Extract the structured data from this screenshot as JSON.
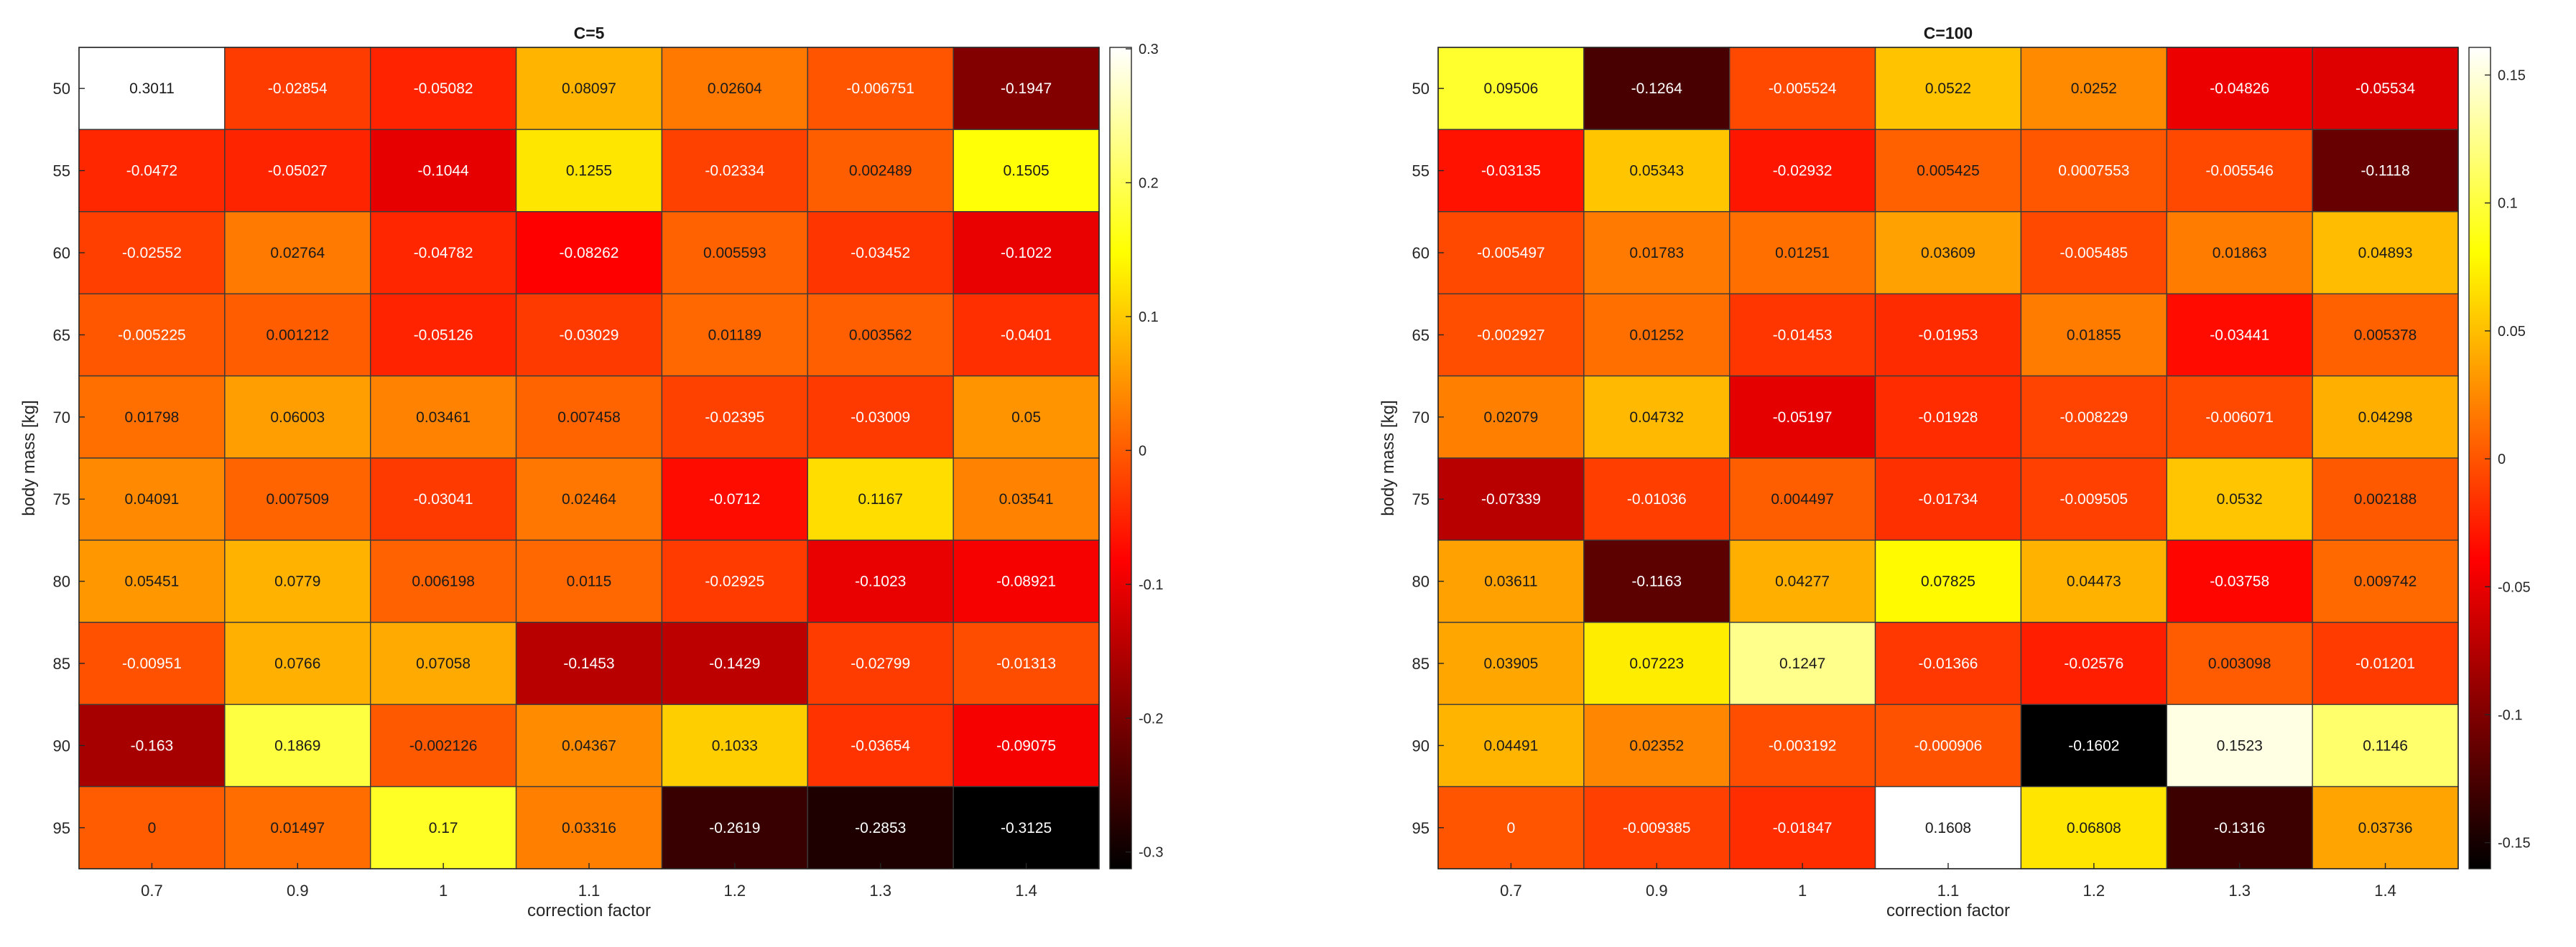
{
  "chart_data": [
    {
      "type": "heatmap",
      "title": "C=5",
      "xlabel": "correction factor",
      "ylabel": "body mass [kg]",
      "x_labels": [
        "0.7",
        "0.9",
        "1",
        "1.1",
        "1.2",
        "1.3",
        "1.4"
      ],
      "y_labels": [
        "50",
        "55",
        "60",
        "65",
        "70",
        "75",
        "80",
        "85",
        "90",
        "95"
      ],
      "values": [
        [
          0.3011,
          -0.02854,
          -0.05082,
          0.08097,
          0.02604,
          -0.006751,
          -0.1947
        ],
        [
          -0.0472,
          -0.05027,
          -0.1044,
          0.1255,
          -0.02334,
          0.002489,
          0.1505
        ],
        [
          -0.02552,
          0.02764,
          -0.04782,
          -0.08262,
          0.005593,
          -0.03452,
          -0.1022
        ],
        [
          -0.005225,
          0.001212,
          -0.05126,
          -0.03029,
          0.01189,
          0.003562,
          -0.0401
        ],
        [
          0.01798,
          0.06003,
          0.03461,
          0.007458,
          -0.02395,
          -0.03009,
          0.05
        ],
        [
          0.04091,
          0.007509,
          -0.03041,
          0.02464,
          -0.0712,
          0.1167,
          0.03541
        ],
        [
          0.05451,
          0.0779,
          0.006198,
          0.0115,
          -0.02925,
          -0.1023,
          -0.08921
        ],
        [
          -0.00951,
          0.0766,
          0.07058,
          -0.1453,
          -0.1429,
          -0.02799,
          -0.01313
        ],
        [
          -0.163,
          0.1869,
          -0.002126,
          0.04367,
          0.1033,
          -0.03654,
          -0.09075
        ],
        [
          0,
          0.01497,
          0.17,
          0.03316,
          -0.2619,
          -0.2853,
          -0.3125
        ]
      ],
      "value_labels": [
        [
          "0.3011",
          "-0.02854",
          "-0.05082",
          "0.08097",
          "0.02604",
          "-0.006751",
          "-0.1947"
        ],
        [
          "-0.0472",
          "-0.05027",
          "-0.1044",
          "0.1255",
          "-0.02334",
          "0.002489",
          "0.1505"
        ],
        [
          "-0.02552",
          "0.02764",
          "-0.04782",
          "-0.08262",
          "0.005593",
          "-0.03452",
          "-0.1022"
        ],
        [
          "-0.005225",
          "0.001212",
          "-0.05126",
          "-0.03029",
          "0.01189",
          "0.003562",
          "-0.0401"
        ],
        [
          "0.01798",
          "0.06003",
          "0.03461",
          "0.007458",
          "-0.02395",
          "-0.03009",
          "0.05"
        ],
        [
          "0.04091",
          "0.007509",
          "-0.03041",
          "0.02464",
          "-0.0712",
          "0.1167",
          "0.03541"
        ],
        [
          "0.05451",
          "0.0779",
          "0.006198",
          "0.0115",
          "-0.02925",
          "-0.1023",
          "-0.08921"
        ],
        [
          "-0.00951",
          "0.0766",
          "0.07058",
          "-0.1453",
          "-0.1429",
          "-0.02799",
          "-0.01313"
        ],
        [
          "-0.163",
          "0.1869",
          "-0.002126",
          "0.04367",
          "0.1033",
          "-0.03654",
          "-0.09075"
        ],
        [
          "0",
          "0.01497",
          "0.17",
          "0.03316",
          "-0.2619",
          "-0.2853",
          "-0.3125"
        ]
      ],
      "clim": [
        -0.3125,
        0.3011
      ],
      "colormap": "hot",
      "colorbar_ticks": [
        -0.3,
        -0.2,
        -0.1,
        0,
        0.1,
        0.2,
        0.3
      ],
      "colorbar_tick_labels": [
        "-0.3",
        "-0.2",
        "-0.1",
        "0",
        "0.1",
        "0.2",
        "0.3"
      ]
    },
    {
      "type": "heatmap",
      "title": "C=100",
      "xlabel": "correction factor",
      "ylabel": "body mass [kg]",
      "x_labels": [
        "0.7",
        "0.9",
        "1",
        "1.1",
        "1.2",
        "1.3",
        "1.4"
      ],
      "y_labels": [
        "50",
        "55",
        "60",
        "65",
        "70",
        "75",
        "80",
        "85",
        "90",
        "95"
      ],
      "values": [
        [
          0.09506,
          -0.1264,
          -0.005524,
          0.0522,
          0.0252,
          -0.04826,
          -0.05534
        ],
        [
          -0.03135,
          0.05343,
          -0.02932,
          0.005425,
          0.0007553,
          -0.005546,
          -0.1118
        ],
        [
          -0.005497,
          0.01783,
          0.01251,
          0.03609,
          -0.005485,
          0.01863,
          0.04893
        ],
        [
          -0.002927,
          0.01252,
          -0.01453,
          -0.01953,
          0.01855,
          -0.03441,
          0.005378
        ],
        [
          0.02079,
          0.04732,
          -0.05197,
          -0.01928,
          -0.008229,
          -0.006071,
          0.04298
        ],
        [
          -0.07339,
          -0.01036,
          0.004497,
          -0.01734,
          -0.009505,
          0.0532,
          0.002188
        ],
        [
          0.03611,
          -0.1163,
          0.04277,
          0.07825,
          0.04473,
          -0.03758,
          0.009742
        ],
        [
          0.03905,
          0.07223,
          0.1247,
          -0.01366,
          -0.02576,
          0.003098,
          -0.01201
        ],
        [
          0.04491,
          0.02352,
          -0.003192,
          -0.000906,
          -0.1602,
          0.1523,
          0.1146
        ],
        [
          0,
          -0.009385,
          -0.01847,
          0.1608,
          0.06808,
          -0.1316,
          0.03736
        ]
      ],
      "value_labels": [
        [
          "0.09506",
          "-0.1264",
          "-0.005524",
          "0.0522",
          "0.0252",
          "-0.04826",
          "-0.05534"
        ],
        [
          "-0.03135",
          "0.05343",
          "-0.02932",
          "0.005425",
          "0.0007553",
          "-0.005546",
          "-0.1118"
        ],
        [
          "-0.005497",
          "0.01783",
          "0.01251",
          "0.03609",
          "-0.005485",
          "0.01863",
          "0.04893"
        ],
        [
          "-0.002927",
          "0.01252",
          "-0.01453",
          "-0.01953",
          "0.01855",
          "-0.03441",
          "0.005378"
        ],
        [
          "0.02079",
          "0.04732",
          "-0.05197",
          "-0.01928",
          "-0.008229",
          "-0.006071",
          "0.04298"
        ],
        [
          "-0.07339",
          "-0.01036",
          "0.004497",
          "-0.01734",
          "-0.009505",
          "0.0532",
          "0.002188"
        ],
        [
          "0.03611",
          "-0.1163",
          "0.04277",
          "0.07825",
          "0.04473",
          "-0.03758",
          "0.009742"
        ],
        [
          "0.03905",
          "0.07223",
          "0.1247",
          "-0.01366",
          "-0.02576",
          "0.003098",
          "-0.01201"
        ],
        [
          "0.04491",
          "0.02352",
          "-0.003192",
          "-0.000906",
          "-0.1602",
          "0.1523",
          "0.1146"
        ],
        [
          "0",
          "-0.009385",
          "-0.01847",
          "0.1608",
          "0.06808",
          "-0.1316",
          "0.03736"
        ]
      ],
      "clim": [
        -0.1602,
        0.1608
      ],
      "colormap": "hot",
      "colorbar_ticks": [
        -0.15,
        -0.1,
        -0.05,
        0,
        0.05,
        0.1,
        0.15
      ],
      "colorbar_tick_labels": [
        "-0.15",
        "-0.1",
        "-0.05",
        "0",
        "0.05",
        "0.1",
        "0.15"
      ]
    }
  ]
}
